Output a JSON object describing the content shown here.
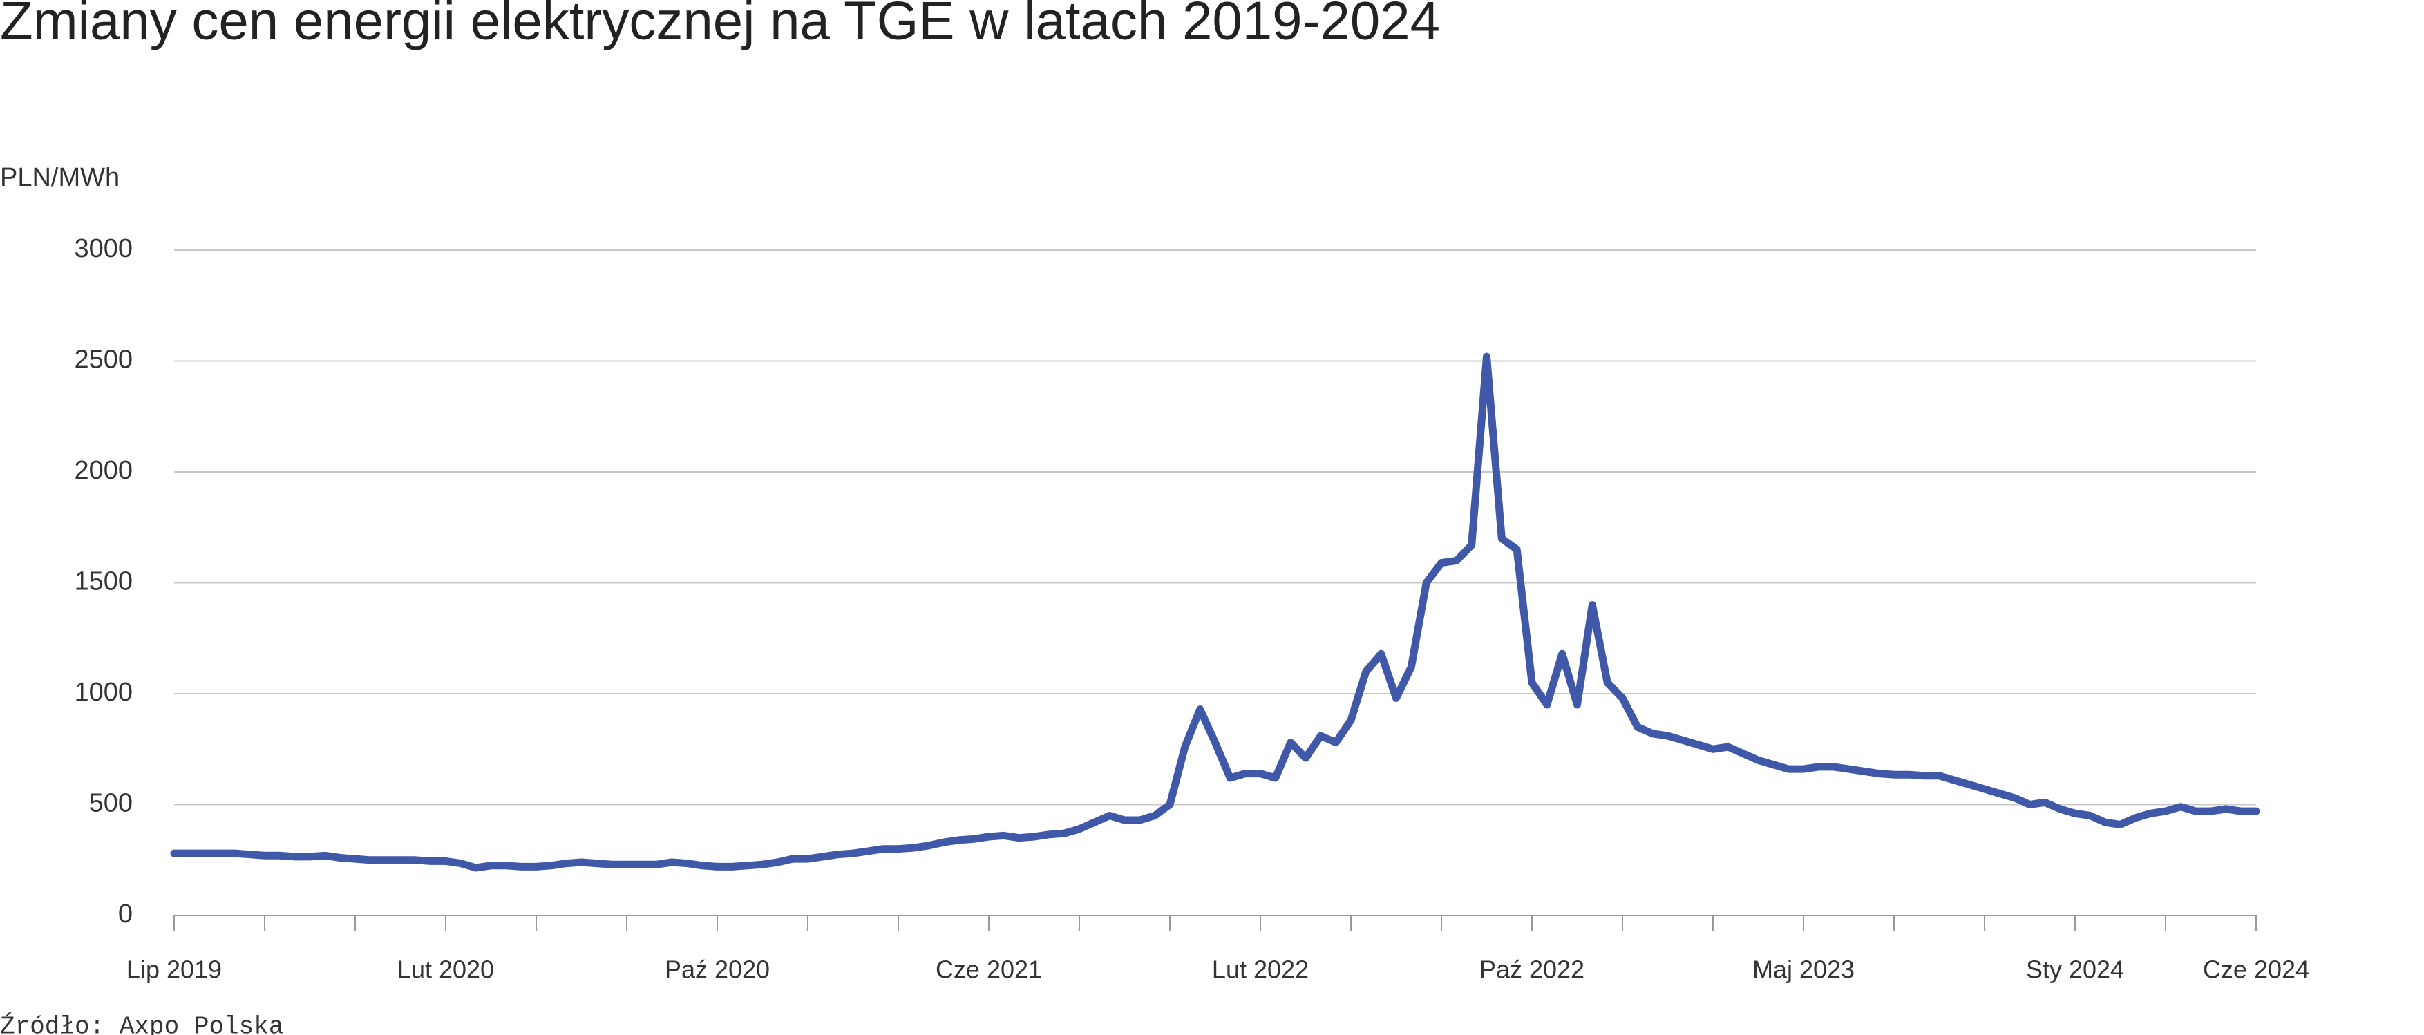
{
  "chart_data": {
    "type": "line",
    "title": "Zmiany cen energii elektrycznej na TGE w latach 2019-2024",
    "y_label": "PLN/MWh",
    "source": "Źródło: Axpo Polska",
    "color": "#3f58a8",
    "grid": true,
    "ylim": [
      0,
      3000
    ],
    "yticks": [
      0,
      500,
      1000,
      1500,
      2000,
      2500,
      3000
    ],
    "categories": [
      "Lip 2019",
      null,
      null,
      null,
      null,
      null,
      null,
      null,
      null,
      null,
      null,
      null,
      null,
      null,
      null,
      null,
      null,
      null,
      "Lut 2020",
      null,
      null,
      null,
      null,
      null,
      null,
      null,
      null,
      null,
      null,
      null,
      null,
      null,
      null,
      null,
      null,
      null,
      "Paź 2020",
      null,
      null,
      null,
      null,
      null,
      null,
      null,
      null,
      null,
      null,
      null,
      null,
      null,
      null,
      null,
      null,
      null,
      "Cze 2021",
      null,
      null,
      null,
      null,
      null,
      null,
      null,
      null,
      null,
      null,
      null,
      null,
      null,
      null,
      null,
      null,
      null,
      "Lut 2022",
      null,
      null,
      null,
      null,
      null,
      null,
      null,
      null,
      null,
      null,
      null,
      null,
      null,
      null,
      null,
      null,
      null,
      "Paź 2022",
      null,
      null,
      null,
      null,
      null,
      null,
      null,
      null,
      null,
      null,
      null,
      null,
      null,
      null,
      null,
      null,
      null,
      "Maj 2023",
      null,
      null,
      null,
      null,
      null,
      null,
      null,
      null,
      null,
      null,
      null,
      null,
      null,
      null,
      null,
      null,
      null,
      "Sty 2024",
      null,
      null,
      null,
      null,
      null,
      null,
      null,
      null,
      null,
      null,
      null,
      "Cze 2024"
    ],
    "values": [
      280,
      280,
      280,
      280,
      280,
      275,
      270,
      270,
      265,
      265,
      270,
      260,
      255,
      250,
      250,
      250,
      250,
      245,
      245,
      235,
      215,
      225,
      225,
      220,
      220,
      225,
      235,
      240,
      235,
      230,
      230,
      230,
      230,
      240,
      235,
      225,
      220,
      220,
      225,
      230,
      240,
      255,
      255,
      265,
      275,
      280,
      290,
      300,
      300,
      305,
      315,
      330,
      340,
      345,
      355,
      360,
      350,
      355,
      365,
      370,
      390,
      420,
      450,
      430,
      430,
      450,
      500,
      760,
      930,
      780,
      620,
      640,
      640,
      620,
      780,
      710,
      810,
      780,
      880,
      1100,
      1180,
      980,
      1120,
      1500,
      1590,
      1600,
      1670,
      2520,
      1700,
      1650,
      1050,
      950,
      1180,
      950,
      1400,
      1050,
      980,
      850,
      820,
      810,
      790,
      770,
      750,
      760,
      730,
      700,
      680,
      660,
      660,
      670,
      670,
      660,
      650,
      640,
      635,
      635,
      630,
      630,
      610,
      590,
      570,
      550,
      530,
      500,
      510,
      480,
      460,
      450,
      420,
      410,
      440,
      460,
      470,
      490,
      470,
      470,
      480,
      470,
      470
    ]
  }
}
